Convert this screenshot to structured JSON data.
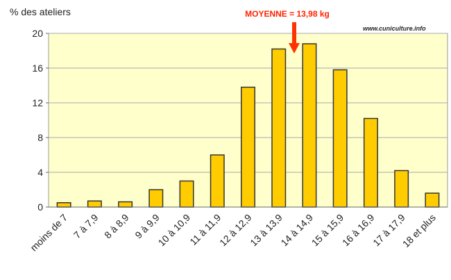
{
  "chart_data": {
    "type": "bar",
    "y_label": "% des ateliers",
    "annotation": "MOYENNE = 13,98 kg",
    "source": "www.cuniculture.info",
    "categories": [
      "moins de 7",
      "7 à 7,9",
      "8 à 8,9",
      "9 à 9,9",
      "10 à 10,9",
      "11 à 11,9",
      "12 à 12,9",
      "13 à 13,9",
      "14 à 14,9",
      "15 à 15,9",
      "16 à 16,9",
      "17 à 17,9",
      "18 et plus"
    ],
    "values": [
      0.5,
      0.7,
      0.6,
      2.0,
      3.0,
      6.0,
      13.8,
      18.2,
      18.8,
      15.8,
      10.2,
      4.2,
      1.6
    ],
    "color": "#ffcc00",
    "ylim": [
      0,
      20
    ],
    "yticks": [
      0,
      4,
      8,
      12,
      16,
      20
    ],
    "grid": true
  }
}
